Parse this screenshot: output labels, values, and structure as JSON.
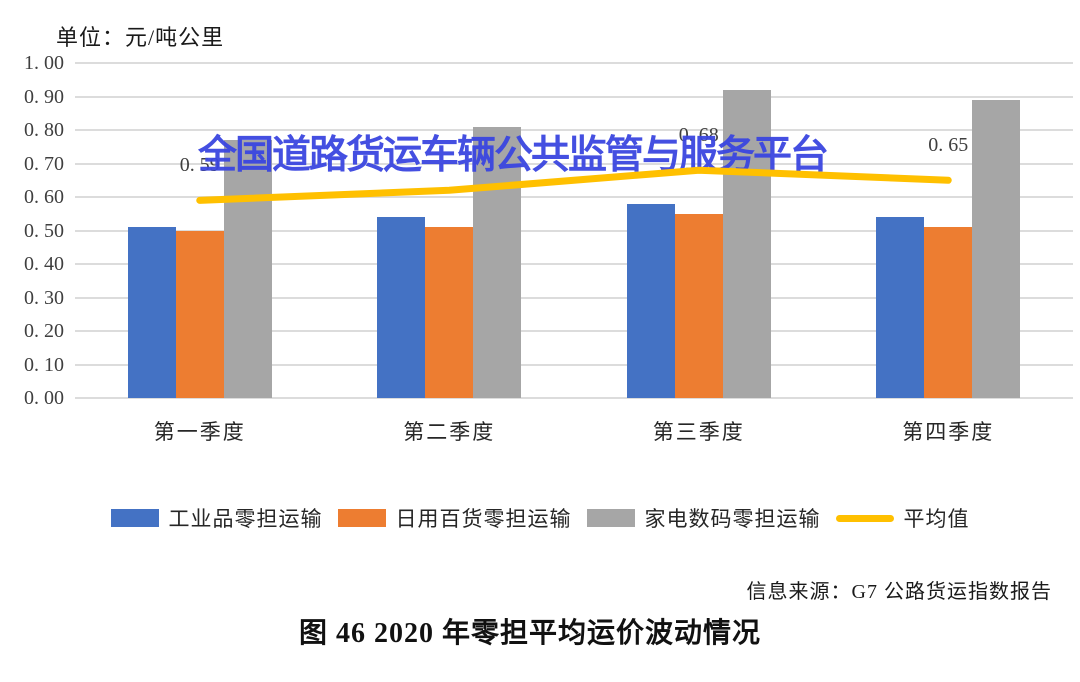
{
  "unit_label": "单位：元/吨公里",
  "watermark": "全国道路货运车辆公共监管与服务平台",
  "source": "信息来源：G7 公路货运指数报告",
  "caption": "图 46  2020 年零担平均运价波动情况",
  "colors": {
    "industrial_blue": "#4472C4",
    "daily_goods_orange": "#ED7D31",
    "appliance_gray": "#A6A6A6",
    "average_yellow": "#FFC000",
    "watermark_blue": "#3A46E0",
    "gridline": "#DCDCDC"
  },
  "chart_data": {
    "type": "bar",
    "subtype": "grouped-bars-with-line-overlay",
    "title": "",
    "xlabel": "",
    "ylabel": "单位：元/吨公里",
    "categories": [
      "第一季度",
      "第二季度",
      "第三季度",
      "第四季度"
    ],
    "series": [
      {
        "name": "工业品零担运输",
        "color": "#4472C4",
        "values": [
          0.51,
          0.54,
          0.58,
          0.54
        ]
      },
      {
        "name": "日用百货零担运输",
        "color": "#ED7D31",
        "values": [
          0.5,
          0.51,
          0.55,
          0.51
        ]
      },
      {
        "name": "家电数码零担运输",
        "color": "#A6A6A6",
        "values": [
          0.77,
          0.81,
          0.92,
          0.89
        ]
      }
    ],
    "line_series": {
      "name": "平均值",
      "color": "#FFC000",
      "values": [
        0.59,
        0.62,
        0.68,
        0.65
      ],
      "point_labels": [
        "0. 59",
        "",
        "0. 68",
        "0. 65"
      ]
    },
    "ylim": [
      0,
      1
    ],
    "ytick_labels": [
      "0. 00",
      "0. 10",
      "0. 20",
      "0. 30",
      "0. 40",
      "0. 50",
      "0. 60",
      "0. 70",
      "0. 80",
      "0. 90",
      "1. 00"
    ],
    "grid": true,
    "legend_position": "bottom"
  },
  "legend": {
    "items": [
      {
        "label": "工业品零担运输",
        "swatch": "rect",
        "color": "#4472C4"
      },
      {
        "label": "日用百货零担运输",
        "swatch": "rect",
        "color": "#ED7D31"
      },
      {
        "label": "家电数码零担运输",
        "swatch": "rect",
        "color": "#A6A6A6"
      },
      {
        "label": "平均值",
        "swatch": "line",
        "color": "#FFC000"
      }
    ]
  }
}
